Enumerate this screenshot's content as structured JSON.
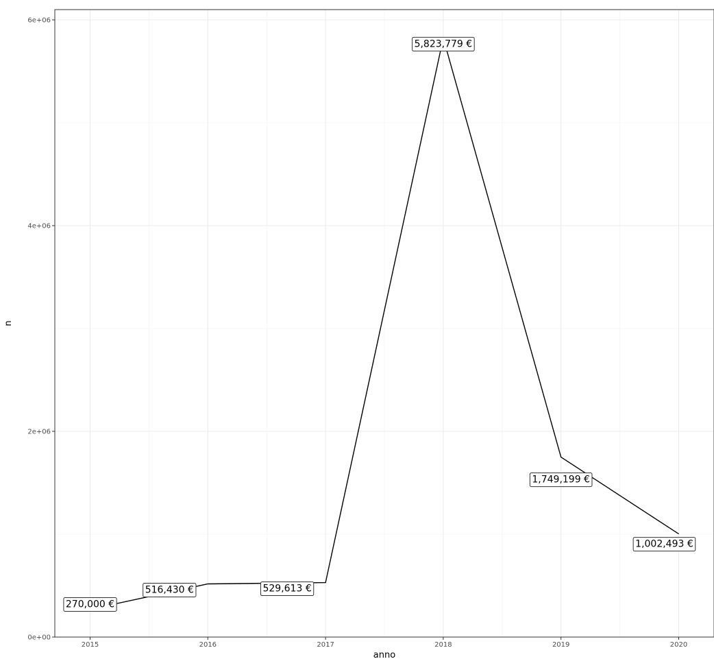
{
  "chart_data": {
    "type": "line",
    "x": [
      2015,
      2016,
      2017,
      2018,
      2019,
      2020
    ],
    "values": [
      270000,
      516430,
      529613,
      5823779,
      1749199,
      1002493
    ],
    "data_labels": [
      "270,000 €",
      "516,430 €",
      "529,613 €",
      "5,823,779 €",
      "1,749,199 €",
      "1,002,493 €"
    ],
    "x_tick_labels": [
      "2015",
      "2016",
      "2017",
      "2018",
      "2019",
      "2020"
    ],
    "y_ticks": [
      0,
      2000000,
      4000000,
      6000000
    ],
    "y_tick_labels": [
      "0e+00",
      "2e+06",
      "4e+06",
      "6e+06"
    ],
    "xlabel": "anno",
    "ylabel": "n",
    "xlim": [
      2014.7,
      2020.3
    ],
    "ylim": [
      0,
      6100000
    ],
    "grid": true,
    "legend": "none",
    "colors": {
      "line": "#000000",
      "grid_major": "#ebebeb",
      "grid_minor": "#f4f4f4",
      "panel_border": "#333333",
      "label_border": "#333333"
    }
  }
}
